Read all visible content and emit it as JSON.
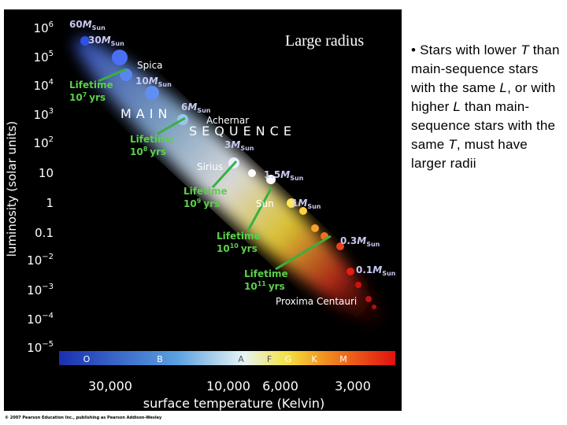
{
  "figure": {
    "overlay_label": "Large radius",
    "y_axis_title": "luminosity (solar units)",
    "y_ticks": [
      {
        "text": "10",
        "sup": "6"
      },
      {
        "text": "10",
        "sup": "5"
      },
      {
        "text": "10",
        "sup": "4"
      },
      {
        "text": "10",
        "sup": "3"
      },
      {
        "text": "10",
        "sup": "2"
      },
      {
        "text": "10"
      },
      {
        "text": "1"
      },
      {
        "text": "0.1"
      },
      {
        "text": "10",
        "sup": "−2"
      },
      {
        "text": "10",
        "sup": "−3"
      },
      {
        "text": "10",
        "sup": "−4"
      },
      {
        "text": "10",
        "sup": "−5"
      }
    ],
    "x_axis_title": "surface temperature (Kelvin)",
    "x_ticks": [
      "30,000",
      "10,000",
      "6,000",
      "3,000"
    ],
    "spectral_classes": [
      "O",
      "B",
      "A",
      "F",
      "G",
      "K",
      "M"
    ],
    "band_label": [
      "MAIN",
      "SEQUENCE"
    ],
    "star_labels": [
      "Spica",
      "Achernar",
      "Sirius",
      "Sun",
      "Proxima Centauri"
    ],
    "mass_labels": [
      {
        "num": "60",
        "unit": "M",
        "sub": "Sun"
      },
      {
        "num": "30",
        "unit": "M",
        "sub": "Sun"
      },
      {
        "num": "10",
        "unit": "M",
        "sub": "Sun"
      },
      {
        "num": "6",
        "unit": "M",
        "sub": "Sun"
      },
      {
        "num": "3",
        "unit": "M",
        "sub": "Sun"
      },
      {
        "num": "1.5",
        "unit": "M",
        "sub": "Sun"
      },
      {
        "num": "1",
        "unit": "M",
        "sub": "Sun"
      },
      {
        "num": "0.3",
        "unit": "M",
        "sub": "Sun"
      },
      {
        "num": "0.1",
        "unit": "M",
        "sub": "Sun"
      }
    ],
    "lifetimes": [
      {
        "word": "Lifetime",
        "num": "10",
        "exp": "7",
        "unit": "yrs"
      },
      {
        "word": "Lifetime",
        "num": "10",
        "exp": "8",
        "unit": "yrs"
      },
      {
        "word": "Lifetime",
        "num": "10",
        "exp": "9",
        "unit": "yrs"
      },
      {
        "word": "Lifetime",
        "num": "10",
        "exp": "10",
        "unit": "yrs"
      },
      {
        "word": "Lifetime",
        "num": "10",
        "exp": "11",
        "unit": "yrs"
      }
    ],
    "credit": "© 2007 Pearson Education Inc., publishing as Pearson Addison-Wesley"
  },
  "bullet": {
    "marker": "•",
    "parts": [
      {
        "text": "Stars with lower "
      },
      {
        "text": "T",
        "italic": true
      },
      {
        "text": " than main-sequence stars with the same "
      },
      {
        "text": "L",
        "italic": true
      },
      {
        "text": ", or with higher "
      },
      {
        "text": "L",
        "italic": true
      },
      {
        "text": " than main-sequence stars with the same "
      },
      {
        "text": "T",
        "italic": true
      },
      {
        "text": ", must have larger radii"
      }
    ]
  }
}
